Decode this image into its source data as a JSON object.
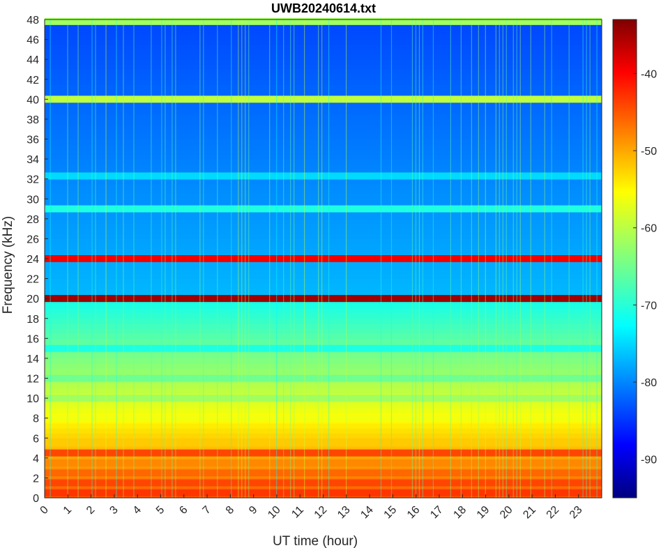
{
  "chart_data": {
    "type": "heatmap",
    "title": "UWB20240614.txt",
    "xlabel": "UT time (hour)",
    "ylabel": "Frequency (kHz)",
    "xlim": [
      0,
      24
    ],
    "ylim": [
      0,
      48
    ],
    "x_ticks": [
      0,
      1,
      2,
      3,
      4,
      5,
      6,
      7,
      8,
      9,
      10,
      11,
      12,
      13,
      14,
      15,
      16,
      17,
      18,
      19,
      20,
      21,
      22,
      23
    ],
    "y_ticks": [
      0,
      2,
      4,
      6,
      8,
      10,
      12,
      14,
      16,
      18,
      20,
      22,
      24,
      26,
      28,
      30,
      32,
      34,
      36,
      38,
      40,
      42,
      44,
      46,
      48
    ],
    "colorbar": {
      "colormap": "jet",
      "range": [
        -95,
        -33
      ],
      "ticks": [
        -90,
        -80,
        -70,
        -60,
        -50,
        -40
      ]
    },
    "bands": [
      {
        "freq": 0.5,
        "level": -44
      },
      {
        "freq": 1.5,
        "level": -45
      },
      {
        "freq": 2.5,
        "level": -47
      },
      {
        "freq": 3.5,
        "level": -49
      },
      {
        "freq": 4.5,
        "level": -45
      },
      {
        "freq": 5.5,
        "level": -53
      },
      {
        "freq": 8.0,
        "level": -57
      },
      {
        "freq": 10.0,
        "level": -62
      },
      {
        "freq": 12.0,
        "level": -65
      },
      {
        "freq": 15.0,
        "level": -70
      },
      {
        "freq": 20.0,
        "level": -35
      },
      {
        "freq": 24.0,
        "level": -40
      },
      {
        "freq": 29.0,
        "level": -70
      },
      {
        "freq": 32.3,
        "level": -74
      },
      {
        "freq": 40.0,
        "level": -60
      },
      {
        "freq": 47.8,
        "level": -62
      }
    ],
    "background_level": -82
  }
}
